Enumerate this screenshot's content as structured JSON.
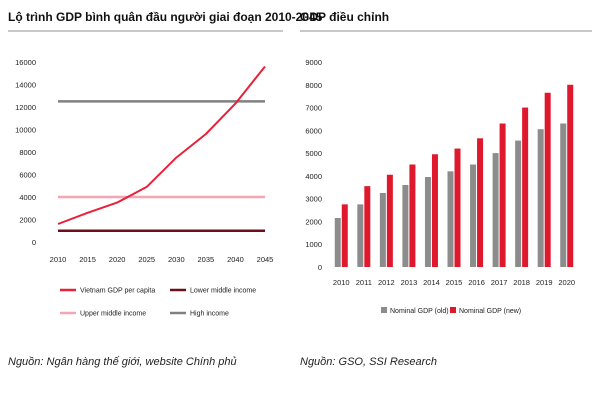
{
  "left_panel": {
    "title": "Lộ trình GDP bình quân đầu người giai đoạn 2010-2045",
    "source": "Nguồn: Ngân hàng thế giới, website Chính phủ"
  },
  "right_panel": {
    "title": "GDP điều chỉnh",
    "source": "Nguồn: GSO, SSI Research"
  },
  "chart_data": [
    {
      "type": "line",
      "title": "Lộ trình GDP bình quân đầu người giai đoạn 2010-2045",
      "xlabel": "",
      "ylabel": "",
      "categories": [
        "2010",
        "2015",
        "2020",
        "2025",
        "2030",
        "2035",
        "2040",
        "2045"
      ],
      "ylim": [
        0,
        16000
      ],
      "yticks": [
        0,
        2000,
        4000,
        6000,
        8000,
        10000,
        12000,
        14000,
        16000
      ],
      "grid": false,
      "legend_position": "bottom",
      "series": [
        {
          "name": "Vietnam GDP per capita",
          "color": "#e8213a",
          "width": 2,
          "values": [
            1600,
            2600,
            3500,
            4900,
            7500,
            9600,
            12300,
            15600
          ]
        },
        {
          "name": "Lower middle income",
          "color": "#6b0f1a",
          "width": 2.5,
          "values": [
            1000,
            1000,
            1000,
            1000,
            1000,
            1000,
            1000,
            1000
          ]
        },
        {
          "name": "Upper middle income",
          "color": "#f4a6b2",
          "width": 2.5,
          "values": [
            4000,
            4000,
            4000,
            4000,
            4000,
            4000,
            4000,
            4000
          ]
        },
        {
          "name": "High income",
          "color": "#808080",
          "width": 2.5,
          "values": [
            12500,
            12500,
            12500,
            12500,
            12500,
            12500,
            12500,
            12500
          ]
        }
      ]
    },
    {
      "type": "bar",
      "title": "GDP điều chỉnh",
      "xlabel": "",
      "ylabel": "",
      "categories": [
        "2010",
        "2011",
        "2012",
        "2013",
        "2014",
        "2015",
        "2016",
        "2017",
        "2018",
        "2019",
        "2020"
      ],
      "ylim": [
        0,
        9000
      ],
      "yticks": [
        0,
        1000,
        2000,
        3000,
        4000,
        5000,
        6000,
        7000,
        8000,
        9000
      ],
      "grid": false,
      "legend_position": "bottom",
      "series": [
        {
          "name": "Nominal GDP (old)",
          "color": "#8c8c8c",
          "values": [
            2150,
            2750,
            3250,
            3600,
            3950,
            4200,
            4500,
            5000,
            5550,
            6050,
            6300
          ]
        },
        {
          "name": "Nominal GDP (new)",
          "color": "#e0182d",
          "values": [
            2750,
            3550,
            4050,
            4500,
            4950,
            5200,
            5650,
            6300,
            7000,
            7650,
            8000
          ]
        }
      ]
    }
  ]
}
